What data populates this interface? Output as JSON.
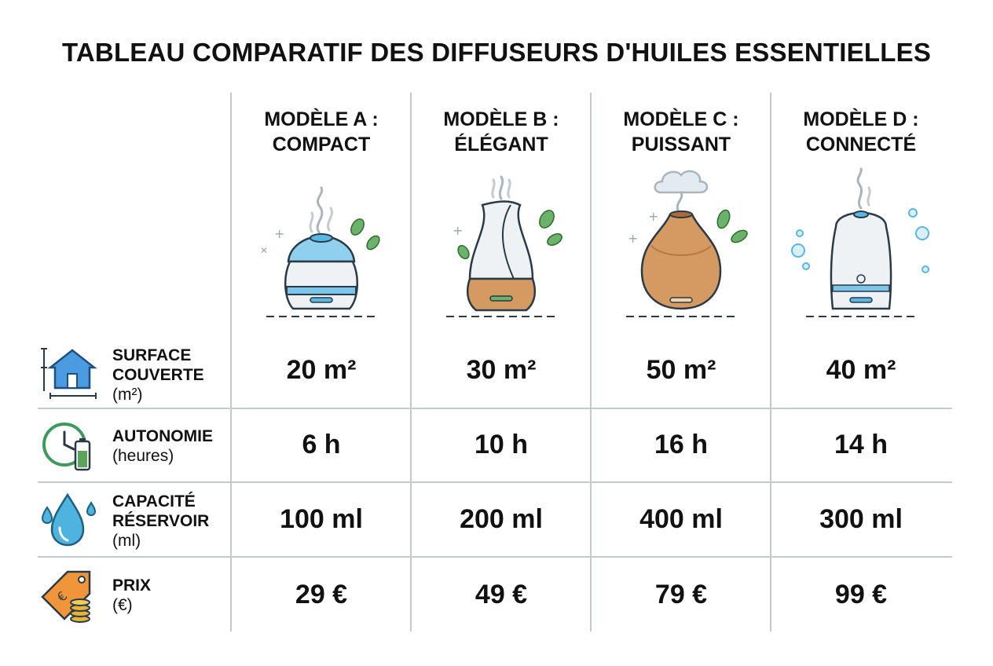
{
  "title": "TABLEAU COMPARATIF DES DIFFUSEURS D'HUILES ESSENTIELLES",
  "columns": [
    {
      "line1": "MODÈLE A :",
      "line2": "COMPACT",
      "illustration": "compact-diffuser-icon"
    },
    {
      "line1": "MODÈLE B :",
      "line2": "ÉLÉGANT",
      "illustration": "elegant-diffuser-icon"
    },
    {
      "line1": "MODÈLE C :",
      "line2": "PUISSANT",
      "illustration": "powerful-diffuser-icon"
    },
    {
      "line1": "MODÈLE D :",
      "line2": "CONNECTÉ",
      "illustration": "connected-diffuser-icon"
    }
  ],
  "rows": [
    {
      "icon": "house-area-icon",
      "label1": "SURFACE",
      "label2": "COUVERTE",
      "unit": "(m²)",
      "values": [
        "20 m²",
        "30 m²",
        "50 m²",
        "40 m²"
      ]
    },
    {
      "icon": "clock-battery-icon",
      "label1": "AUTONOMIE",
      "label2": "",
      "unit": "(heures)",
      "values": [
        "6 h",
        "10 h",
        "16 h",
        "14 h"
      ]
    },
    {
      "icon": "water-drop-icon",
      "label1": "CAPACITÉ",
      "label2": "RÉSERVOIR",
      "unit": "(ml)",
      "values": [
        "100 ml",
        "200 ml",
        "400 ml",
        "300 ml"
      ]
    },
    {
      "icon": "price-tag-coins-icon",
      "label1": "PRIX",
      "label2": "",
      "unit": "(€)",
      "values": [
        "29 €",
        "49 €",
        "79 €",
        "99 €"
      ]
    }
  ],
  "colors": {
    "grid": "#c4c9cc",
    "icon_blue": "#3a8fd6",
    "leaf_green": "#5aa55a",
    "wood": "#c98b52",
    "tag_orange": "#f0953a",
    "coin_gold": "#e5b33c"
  }
}
